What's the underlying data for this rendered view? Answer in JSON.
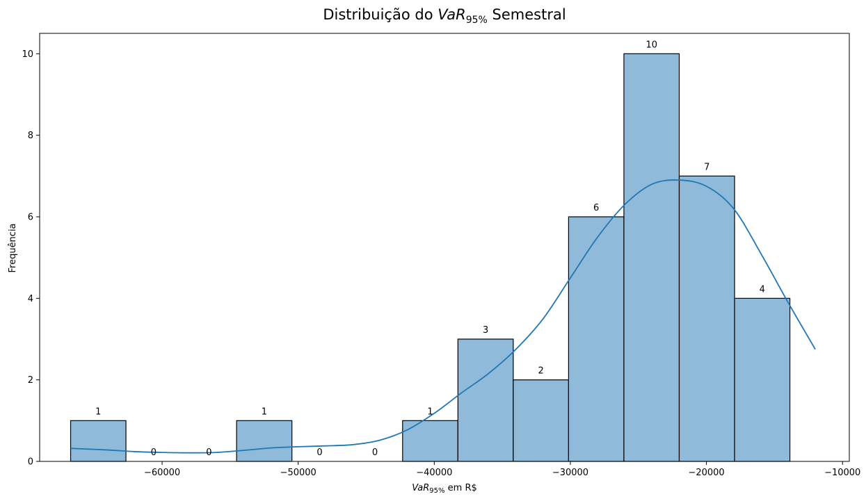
{
  "chart_data": {
    "type": "bar",
    "title": {
      "prefix": "Distribuição do ",
      "var_main": "VaR",
      "var_sub": "95%",
      "suffix": " Semestral"
    },
    "xlabel": {
      "var_main": "VaR",
      "var_sub": "95%",
      "suffix": " em R$"
    },
    "ylabel": "Frequência",
    "xlim": [
      -69000,
      -9500
    ],
    "ylim": [
      0,
      10.5
    ],
    "bin_edges": [
      -66724,
      -62658,
      -58592,
      -54526,
      -50460,
      -46394,
      -42328,
      -38262,
      -34196,
      -30130,
      -26064,
      -21998,
      -17932,
      -13866
    ],
    "counts": [
      1,
      0,
      0,
      1,
      0,
      0,
      1,
      3,
      2,
      6,
      10,
      7,
      4
    ],
    "count_labels": [
      "1",
      "0",
      "0",
      "1",
      "0",
      "0",
      "1",
      "3",
      "2",
      "6",
      "10",
      "7",
      "4"
    ],
    "x_ticks": [
      -60000,
      -50000,
      -40000,
      -30000,
      -20000,
      -10000
    ],
    "x_tick_labels": [
      "−60000",
      "−50000",
      "−40000",
      "−30000",
      "−20000",
      "−10000"
    ],
    "y_ticks": [
      0,
      2,
      4,
      6,
      8,
      10
    ],
    "y_tick_labels": [
      "0",
      "2",
      "4",
      "6",
      "8",
      "10"
    ],
    "kde": {
      "x": [
        -66724,
        -64000,
        -62000,
        -60000,
        -58000,
        -56000,
        -54000,
        -52000,
        -50000,
        -48000,
        -46000,
        -44000,
        -42000,
        -40000,
        -38000,
        -36000,
        -34000,
        -32000,
        -30000,
        -28000,
        -26000,
        -24000,
        -22000,
        -20000,
        -18000,
        -16000,
        -14000,
        -12000
      ],
      "y": [
        0.32,
        0.28,
        0.24,
        0.22,
        0.21,
        0.22,
        0.27,
        0.33,
        0.36,
        0.38,
        0.41,
        0.52,
        0.77,
        1.18,
        1.68,
        2.16,
        2.75,
        3.5,
        4.5,
        5.5,
        6.3,
        6.8,
        6.9,
        6.75,
        6.2,
        5.1,
        3.9,
        2.75
      ]
    },
    "grid": false,
    "bar_color": "#8fbada",
    "bar_edge_color": "#000000",
    "line_color": "#1f77b4"
  }
}
